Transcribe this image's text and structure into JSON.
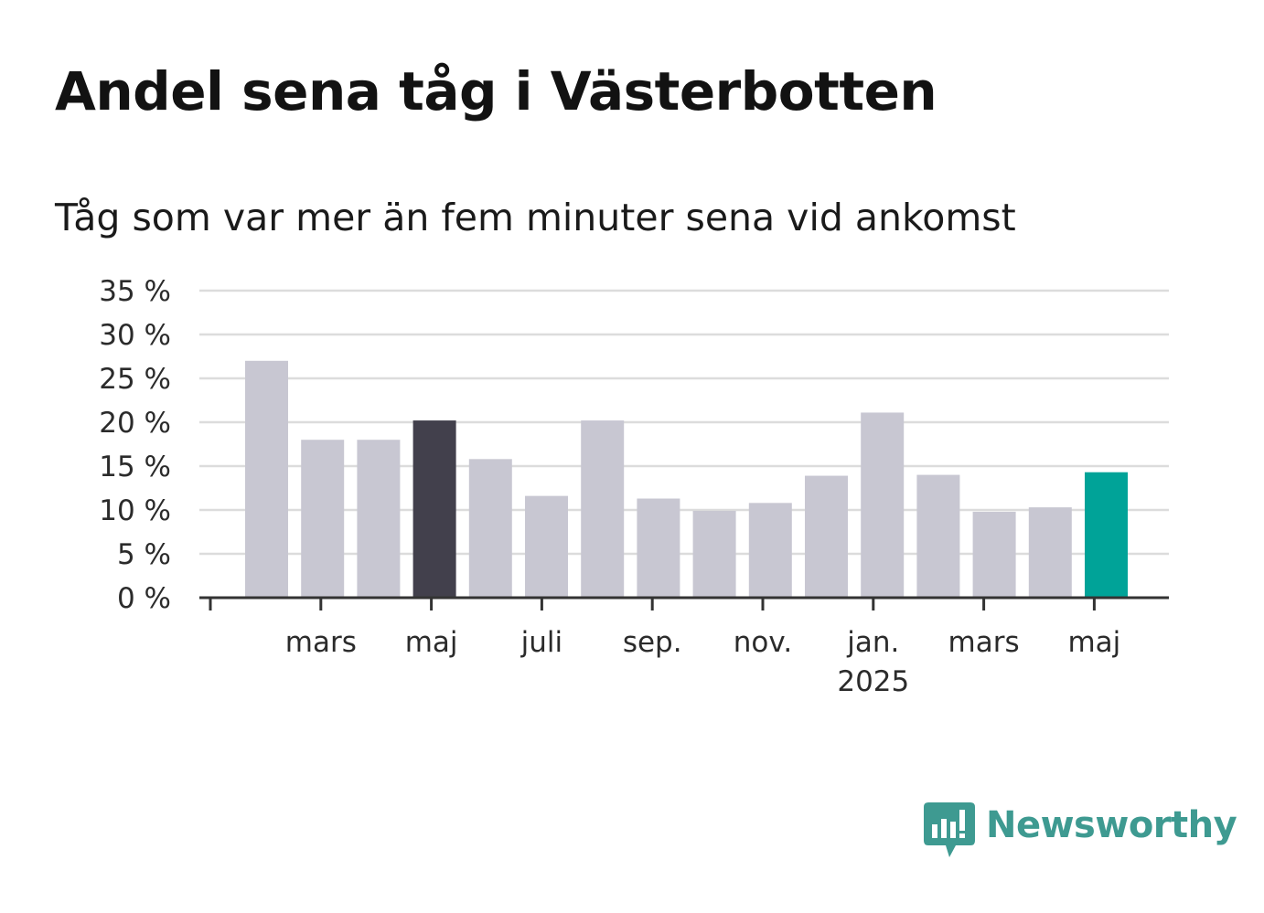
{
  "chart_data": {
    "type": "bar",
    "title": "Andel sena tåg i Västerbotten",
    "subtitle": "Tåg som var mer än fem minuter sena vid ankomst",
    "values": [
      27.0,
      18.0,
      18.0,
      20.2,
      15.8,
      11.6,
      20.2,
      11.3,
      9.9,
      10.8,
      13.9,
      21.1,
      14.0,
      9.8,
      10.3,
      14.3
    ],
    "x_tick_labels": [
      {
        "bar_index": 2,
        "label": "mars",
        "sublabel": ""
      },
      {
        "bar_index": 4,
        "label": "maj",
        "sublabel": ""
      },
      {
        "bar_index": 6,
        "label": "juli",
        "sublabel": ""
      },
      {
        "bar_index": 8,
        "label": "sep.",
        "sublabel": ""
      },
      {
        "bar_index": 10,
        "label": "nov.",
        "sublabel": ""
      },
      {
        "bar_index": 12,
        "label": "jan.",
        "sublabel": "2025"
      },
      {
        "bar_index": 14,
        "label": "mars",
        "sublabel": ""
      },
      {
        "bar_index": 16,
        "label": "maj",
        "sublabel": ""
      }
    ],
    "y_ticks": [
      0,
      5,
      10,
      15,
      20,
      25,
      30,
      35
    ],
    "y_tick_suffix": " %",
    "ylim": [
      0,
      35
    ],
    "grid": true,
    "colors": {
      "default": "#c8c7d2",
      "highlight": "#42404c",
      "latest": "#00a398",
      "grid": "#dcdcdc",
      "axis": "#333333"
    },
    "highlight_index": 3,
    "latest_index": 15
  },
  "brand": {
    "name": "Newsworthy",
    "logo_icon": "newsworthy-chart-bubble-icon"
  }
}
